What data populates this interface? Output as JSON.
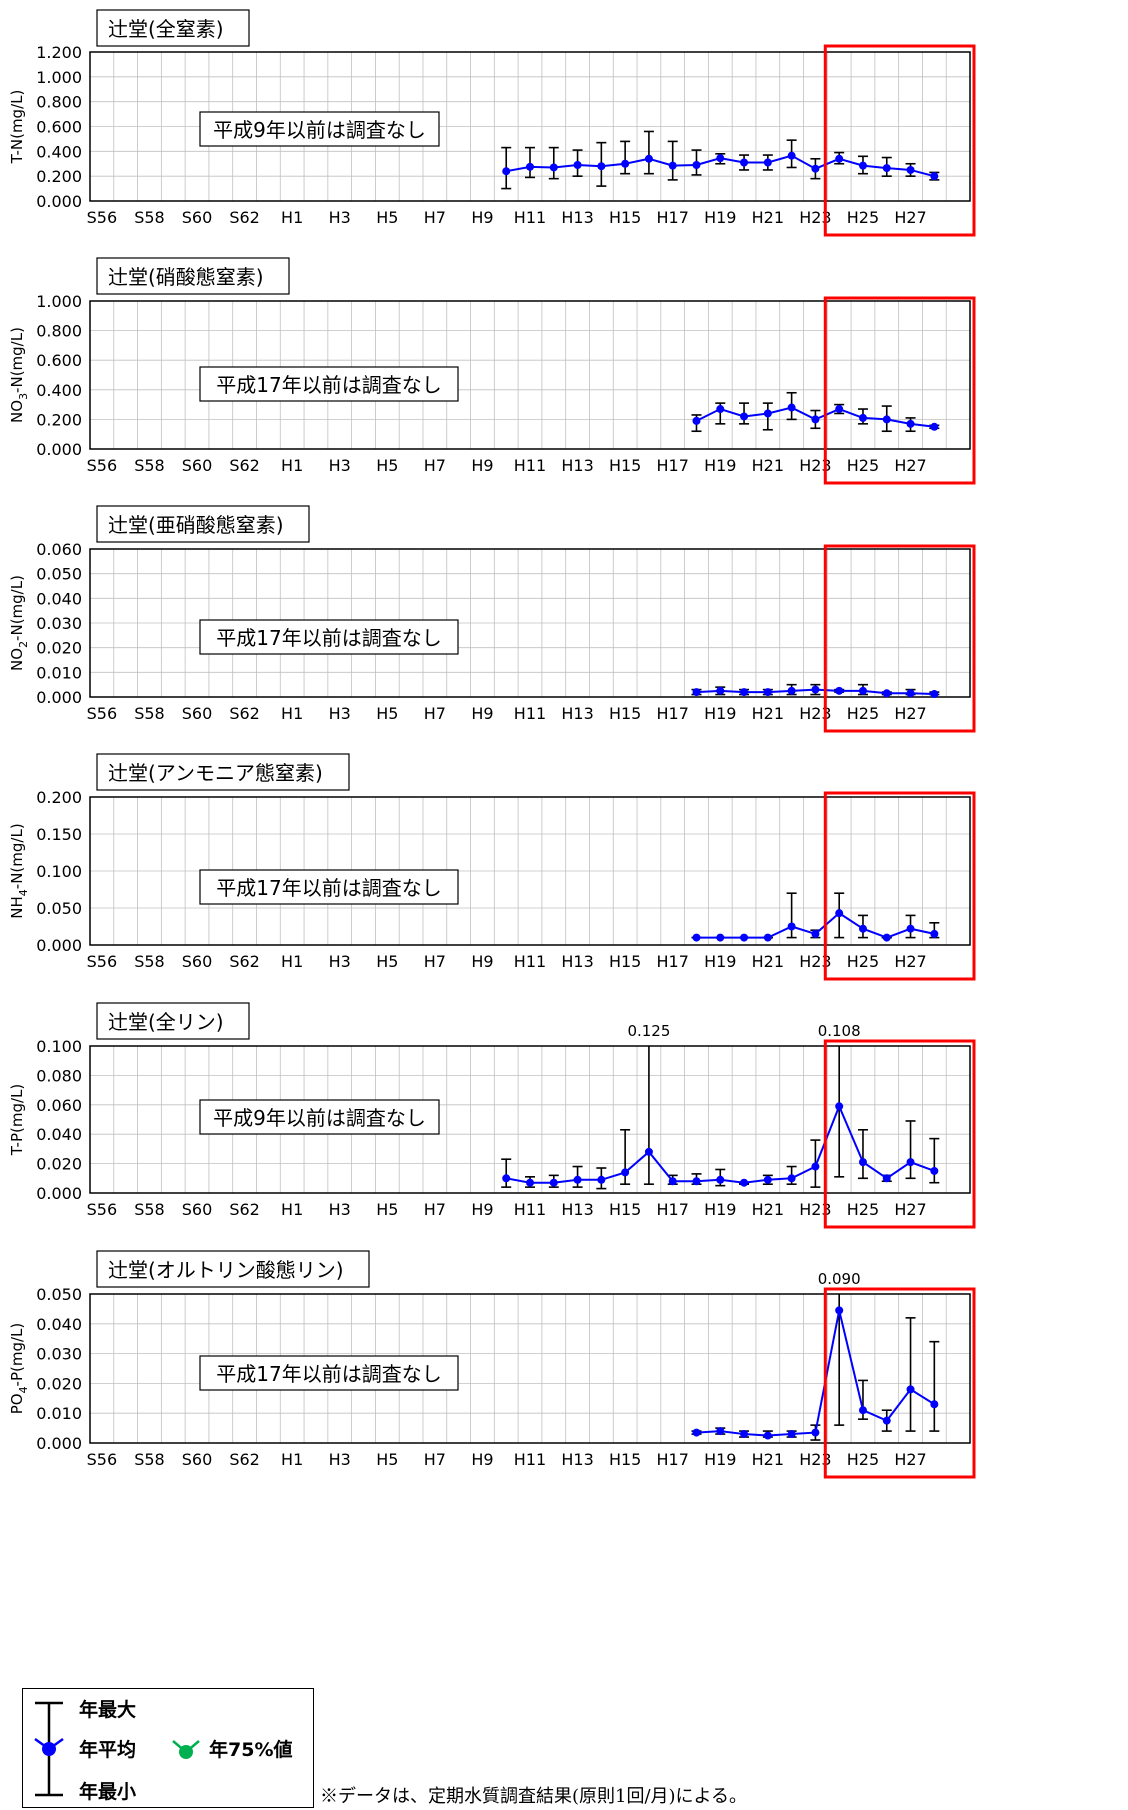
{
  "colors": {
    "mean": "#0000ff",
    "pct75": "#00b050",
    "errorbar": "#000000",
    "highlight": "#ff0000",
    "grid": "#c0c0c0"
  },
  "legend": {
    "max": "年最大",
    "mean": "年平均",
    "min": "年最小",
    "p75": "年75%値"
  },
  "note": "※データは、定期水質調査結果(原則1回/月)による。",
  "chart_data": [
    {
      "type": "line",
      "title": "辻堂(全窒素)",
      "ylabel": "T-N(mg/L)",
      "ylim": [
        0,
        1.2
      ],
      "yticks": [
        "0.000",
        "0.200",
        "0.400",
        "0.600",
        "0.800",
        "1.000",
        "1.200"
      ],
      "xticks": [
        "S56",
        "S58",
        "S60",
        "S62",
        "H1",
        "H3",
        "H5",
        "H7",
        "H9",
        "H11",
        "H13",
        "H15",
        "H17",
        "H19",
        "H21",
        "H23",
        "H25",
        "H27"
      ],
      "annotation": "平成9年以前は調査なし",
      "highlight_range": [
        "H24",
        "H28"
      ],
      "series": [
        {
          "name": "年平均",
          "x": [
            "H10",
            "H11",
            "H12",
            "H13",
            "H14",
            "H15",
            "H16",
            "H17",
            "H18",
            "H19",
            "H20",
            "H21",
            "H22",
            "H23",
            "H24",
            "H25",
            "H26",
            "H27",
            "H28"
          ],
          "mean": [
            0.24,
            0.275,
            0.27,
            0.29,
            0.28,
            0.3,
            0.34,
            0.285,
            0.29,
            0.345,
            0.31,
            0.31,
            0.365,
            0.26,
            0.34,
            0.285,
            0.265,
            0.25,
            0.2
          ],
          "max": [
            0.43,
            0.43,
            0.43,
            0.41,
            0.47,
            0.48,
            0.56,
            0.48,
            0.41,
            0.38,
            0.37,
            0.37,
            0.49,
            0.34,
            0.39,
            0.36,
            0.35,
            0.3,
            0.23
          ],
          "min": [
            0.1,
            0.19,
            0.18,
            0.2,
            0.12,
            0.22,
            0.22,
            0.17,
            0.21,
            0.3,
            0.25,
            0.25,
            0.27,
            0.18,
            0.3,
            0.22,
            0.2,
            0.2,
            0.17
          ]
        }
      ]
    },
    {
      "type": "line",
      "title": "辻堂(硝酸態窒素)",
      "ylabel": "NO3-N(mg/L)",
      "ylim": [
        0,
        1.0
      ],
      "yticks": [
        "0.000",
        "0.200",
        "0.400",
        "0.600",
        "0.800",
        "1.000"
      ],
      "xticks": [
        "S56",
        "S58",
        "S60",
        "S62",
        "H1",
        "H3",
        "H5",
        "H7",
        "H9",
        "H11",
        "H13",
        "H15",
        "H17",
        "H19",
        "H21",
        "H23",
        "H25",
        "H27"
      ],
      "annotation": "平成17年以前は調査なし",
      "highlight_range": [
        "H24",
        "H28"
      ],
      "series": [
        {
          "name": "年平均",
          "x": [
            "H18",
            "H19",
            "H20",
            "H21",
            "H22",
            "H23",
            "H24",
            "H25",
            "H26",
            "H27",
            "H28"
          ],
          "mean": [
            0.19,
            0.27,
            0.22,
            0.24,
            0.28,
            0.2,
            0.27,
            0.21,
            0.2,
            0.17,
            0.15
          ],
          "max": [
            0.23,
            0.31,
            0.31,
            0.31,
            0.38,
            0.26,
            0.3,
            0.27,
            0.29,
            0.21,
            0.16
          ],
          "min": [
            0.12,
            0.17,
            0.17,
            0.13,
            0.2,
            0.14,
            0.24,
            0.17,
            0.12,
            0.12,
            0.14
          ]
        }
      ]
    },
    {
      "type": "line",
      "title": "辻堂(亜硝酸態窒素)",
      "ylabel": "NO2-N(mg/L)",
      "ylim": [
        0,
        0.06
      ],
      "yticks": [
        "0.000",
        "0.010",
        "0.020",
        "0.030",
        "0.040",
        "0.050",
        "0.060"
      ],
      "xticks": [
        "S56",
        "S58",
        "S60",
        "S62",
        "H1",
        "H3",
        "H5",
        "H7",
        "H9",
        "H11",
        "H13",
        "H15",
        "H17",
        "H19",
        "H21",
        "H23",
        "H25",
        "H27"
      ],
      "annotation": "平成17年以前は調査なし",
      "highlight_range": [
        "H24",
        "H28"
      ],
      "series": [
        {
          "name": "年平均",
          "x": [
            "H18",
            "H19",
            "H20",
            "H21",
            "H22",
            "H23",
            "H24",
            "H25",
            "H26",
            "H27",
            "H28"
          ],
          "mean": [
            0.002,
            0.0025,
            0.002,
            0.002,
            0.0025,
            0.003,
            0.0025,
            0.0025,
            0.0015,
            0.0015,
            0.0012
          ],
          "max": [
            0.003,
            0.004,
            0.003,
            0.003,
            0.005,
            0.005,
            0.003,
            0.005,
            0.002,
            0.003,
            0.002
          ],
          "min": [
            0.001,
            0.001,
            0.001,
            0.001,
            0.001,
            0.001,
            0.002,
            0.001,
            0.001,
            0.001,
            0.001
          ]
        }
      ]
    },
    {
      "type": "line",
      "title": "辻堂(アンモニア態窒素)",
      "ylabel": "NH4-N(mg/L)",
      "ylim": [
        0,
        0.2
      ],
      "yticks": [
        "0.000",
        "0.050",
        "0.100",
        "0.150",
        "0.200"
      ],
      "xticks": [
        "S56",
        "S58",
        "S60",
        "S62",
        "H1",
        "H3",
        "H5",
        "H7",
        "H9",
        "H11",
        "H13",
        "H15",
        "H17",
        "H19",
        "H21",
        "H23",
        "H25",
        "H27"
      ],
      "annotation": "平成17年以前は調査なし",
      "highlight_range": [
        "H24",
        "H28"
      ],
      "series": [
        {
          "name": "年平均",
          "x": [
            "H18",
            "H19",
            "H20",
            "H21",
            "H22",
            "H23",
            "H24",
            "H25",
            "H26",
            "H27",
            "H28"
          ],
          "mean": [
            0.01,
            0.01,
            0.01,
            0.01,
            0.025,
            0.015,
            0.043,
            0.022,
            0.01,
            0.022,
            0.015
          ],
          "max": [
            0.01,
            0.01,
            0.01,
            0.01,
            0.07,
            0.02,
            0.07,
            0.04,
            0.01,
            0.04,
            0.03
          ],
          "min": [
            0.01,
            0.01,
            0.01,
            0.01,
            0.01,
            0.01,
            0.01,
            0.01,
            0.01,
            0.01,
            0.01
          ]
        }
      ]
    },
    {
      "type": "line",
      "title": "辻堂(全リン)",
      "ylabel": "T-P(mg/L)",
      "ylim": [
        0,
        0.1
      ],
      "yticks": [
        "0.000",
        "0.020",
        "0.040",
        "0.060",
        "0.080",
        "0.100"
      ],
      "xticks": [
        "S56",
        "S58",
        "S60",
        "S62",
        "H1",
        "H3",
        "H5",
        "H7",
        "H9",
        "H11",
        "H13",
        "H15",
        "H17",
        "H19",
        "H21",
        "H23",
        "H25",
        "H27"
      ],
      "annotation": "平成9年以前は調査なし",
      "highlight_range": [
        "H24",
        "H28"
      ],
      "overflow_labels": [
        {
          "x": "H16",
          "text": "0.125"
        },
        {
          "x": "H24",
          "text": "0.108"
        }
      ],
      "series": [
        {
          "name": "年平均",
          "x": [
            "H10",
            "H11",
            "H12",
            "H13",
            "H14",
            "H15",
            "H16",
            "H17",
            "H18",
            "H19",
            "H20",
            "H21",
            "H22",
            "H23",
            "H24",
            "H25",
            "H26",
            "H27",
            "H28"
          ],
          "mean": [
            0.01,
            0.007,
            0.007,
            0.009,
            0.009,
            0.014,
            0.028,
            0.008,
            0.008,
            0.009,
            0.007,
            0.009,
            0.01,
            0.018,
            0.059,
            0.021,
            0.01,
            0.021,
            0.015
          ],
          "max": [
            0.023,
            0.011,
            0.012,
            0.018,
            0.017,
            0.043,
            0.125,
            0.012,
            0.013,
            0.016,
            0.007,
            0.012,
            0.018,
            0.036,
            0.108,
            0.043,
            0.012,
            0.049,
            0.037
          ],
          "min": [
            0.004,
            0.004,
            0.004,
            0.004,
            0.003,
            0.006,
            0.006,
            0.006,
            0.006,
            0.005,
            0.006,
            0.006,
            0.006,
            0.004,
            0.011,
            0.01,
            0.008,
            0.01,
            0.007
          ]
        }
      ]
    },
    {
      "type": "line",
      "title": "辻堂(オルトリン酸態リン)",
      "ylabel": "PO4-P(mg/L)",
      "ylim": [
        0,
        0.05
      ],
      "yticks": [
        "0.000",
        "0.010",
        "0.020",
        "0.030",
        "0.040",
        "0.050"
      ],
      "xticks": [
        "S56",
        "S58",
        "S60",
        "S62",
        "H1",
        "H3",
        "H5",
        "H7",
        "H9",
        "H11",
        "H13",
        "H15",
        "H17",
        "H19",
        "H21",
        "H23",
        "H25",
        "H27"
      ],
      "annotation": "平成17年以前は調査なし",
      "highlight_range": [
        "H24",
        "H28"
      ],
      "overflow_labels": [
        {
          "x": "H24",
          "text": "0.090"
        }
      ],
      "series": [
        {
          "name": "年平均",
          "x": [
            "H18",
            "H19",
            "H20",
            "H21",
            "H22",
            "H23",
            "H24",
            "H25",
            "H26",
            "H27",
            "H28"
          ],
          "mean": [
            0.0035,
            0.004,
            0.003,
            0.0025,
            0.003,
            0.0035,
            0.0445,
            0.011,
            0.0075,
            0.018,
            0.013
          ],
          "max": [
            0.004,
            0.005,
            0.004,
            0.004,
            0.004,
            0.006,
            0.09,
            0.021,
            0.011,
            0.042,
            0.034
          ],
          "min": [
            0.003,
            0.003,
            0.002,
            0.002,
            0.002,
            0.001,
            0.006,
            0.008,
            0.004,
            0.004,
            0.004
          ]
        }
      ]
    }
  ]
}
